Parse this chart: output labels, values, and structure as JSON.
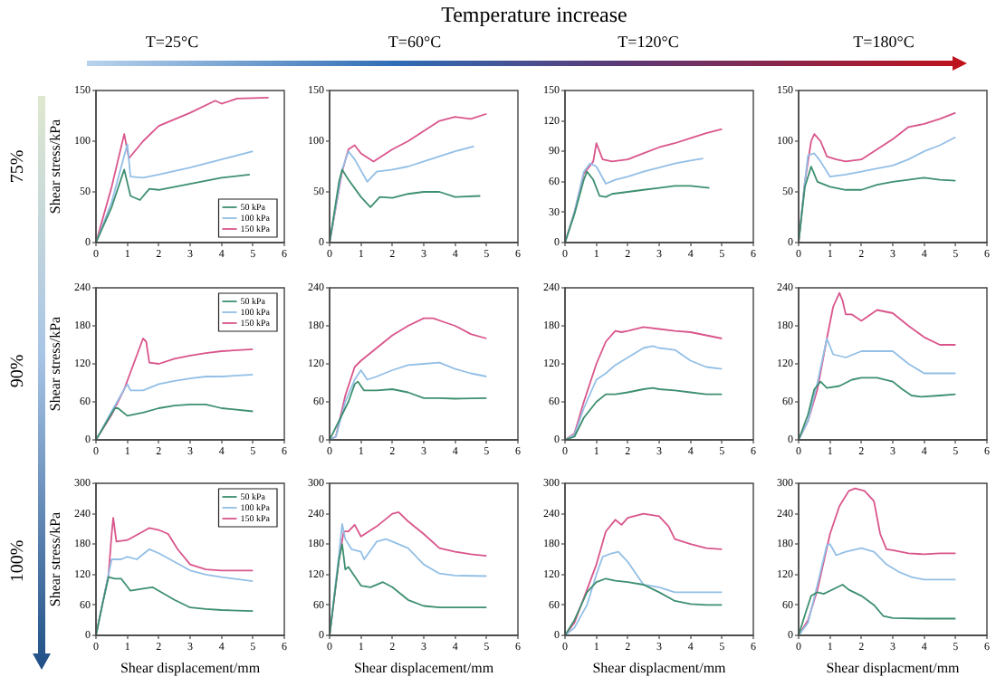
{
  "chart_data": [
    {
      "type": "other",
      "title": "Temperature increase",
      "annotations": [
        "T=25°C",
        "T=60°C",
        "T=120°C",
        "T=180°C",
        "75%",
        "90%",
        "100%"
      ]
    },
    {
      "type": "line",
      "ylabel": "Shear stress/kPa",
      "xlim": [
        0,
        6
      ],
      "xticks": [
        0,
        1,
        2,
        3,
        4,
        5,
        6
      ],
      "ylim": [
        0,
        150
      ],
      "yticks": [
        0,
        50,
        100,
        150
      ],
      "legend": "bottom right",
      "series": [
        {
          "name": "50 kPa",
          "color": "#3d8f6f",
          "x": [
            0,
            0.5,
            0.9,
            1.1,
            1.4,
            1.7,
            2,
            3,
            4,
            4.9
          ],
          "values": [
            0,
            35,
            72,
            46,
            42,
            53,
            52,
            58,
            64,
            67
          ]
        },
        {
          "name": "100 kPa",
          "color": "#93bfe6",
          "x": [
            0,
            0.5,
            1,
            1.1,
            1.5,
            2,
            3,
            4,
            5
          ],
          "values": [
            0,
            40,
            97,
            65,
            64,
            67,
            74,
            82,
            90
          ]
        },
        {
          "name": "150 kPa",
          "color": "#d9558c",
          "x": [
            0,
            0.5,
            0.9,
            1.05,
            1.5,
            2,
            3,
            3.8,
            4,
            4.5,
            5.5
          ],
          "values": [
            0,
            55,
            107,
            83,
            100,
            115,
            128,
            140,
            137,
            142,
            143
          ]
        }
      ]
    },
    {
      "type": "line",
      "xlim": [
        0,
        6
      ],
      "xticks": [
        0,
        1,
        2,
        3,
        4,
        5,
        6
      ],
      "ylim": [
        0,
        150
      ],
      "yticks": [
        0,
        50,
        100,
        150
      ],
      "series": [
        {
          "color": "#3d8f6f",
          "x": [
            0,
            0.3,
            0.4,
            0.6,
            1,
            1.3,
            1.6,
            2,
            2.5,
            3,
            3.5,
            4,
            4.8
          ],
          "values": [
            0,
            60,
            72,
            62,
            45,
            35,
            45,
            44,
            48,
            50,
            50,
            45,
            46
          ]
        },
        {
          "color": "#93bfe6",
          "x": [
            0,
            0.4,
            0.6,
            0.8,
            1.2,
            1.5,
            2,
            2.5,
            3,
            4,
            4.6
          ],
          "values": [
            0,
            72,
            90,
            82,
            60,
            70,
            72,
            75,
            80,
            90,
            95
          ]
        },
        {
          "color": "#d9558c",
          "x": [
            0,
            0.4,
            0.6,
            0.8,
            1,
            1.4,
            2,
            2.5,
            3,
            3.5,
            4,
            4.5,
            5
          ],
          "values": [
            0,
            70,
            92,
            96,
            88,
            80,
            92,
            100,
            110,
            120,
            124,
            122,
            127
          ]
        }
      ]
    },
    {
      "type": "line",
      "xlim": [
        0,
        6
      ],
      "xticks": [
        0,
        1,
        2,
        3,
        4,
        5,
        6
      ],
      "ylim": [
        0,
        150
      ],
      "yticks": [
        0,
        30,
        60,
        90,
        120,
        150
      ],
      "series": [
        {
          "color": "#3d8f6f",
          "x": [
            0,
            0.3,
            0.6,
            0.7,
            0.9,
            1.1,
            1.3,
            1.5,
            2,
            2.5,
            3,
            3.5,
            4,
            4.6
          ],
          "values": [
            0,
            28,
            62,
            70,
            62,
            46,
            45,
            48,
            50,
            52,
            54,
            56,
            56,
            54
          ]
        },
        {
          "color": "#93bfe6",
          "x": [
            0,
            0.3,
            0.6,
            0.8,
            1,
            1.3,
            1.6,
            2,
            2.5,
            3,
            3.5,
            4,
            4.4
          ],
          "values": [
            0,
            30,
            70,
            78,
            75,
            58,
            62,
            65,
            70,
            74,
            78,
            81,
            83
          ]
        },
        {
          "color": "#d9558c",
          "x": [
            0,
            0.3,
            0.6,
            0.9,
            1,
            1.2,
            1.5,
            2,
            2.5,
            3,
            3.5,
            4,
            4.5,
            5
          ],
          "values": [
            0,
            30,
            68,
            80,
            98,
            82,
            80,
            82,
            88,
            94,
            98,
            103,
            108,
            112
          ]
        }
      ]
    },
    {
      "type": "line",
      "xlim": [
        0,
        6
      ],
      "xticks": [
        0,
        1,
        2,
        3,
        4,
        5,
        6
      ],
      "ylim": [
        0,
        150
      ],
      "yticks": [
        0,
        50,
        100,
        150
      ],
      "series": [
        {
          "color": "#3d8f6f",
          "x": [
            0,
            0.2,
            0.4,
            0.6,
            1,
            1.5,
            2,
            2.5,
            3,
            3.5,
            4,
            4.5,
            5
          ],
          "values": [
            0,
            55,
            75,
            60,
            55,
            52,
            52,
            57,
            60,
            62,
            64,
            62,
            61
          ]
        },
        {
          "color": "#93bfe6",
          "x": [
            0,
            0.2,
            0.3,
            0.5,
            0.7,
            1,
            1.5,
            2,
            2.5,
            3,
            3.5,
            4,
            4.5,
            5
          ],
          "values": [
            0,
            60,
            86,
            88,
            80,
            65,
            67,
            70,
            73,
            76,
            82,
            90,
            96,
            104
          ]
        },
        {
          "color": "#d9558c",
          "x": [
            0,
            0.2,
            0.4,
            0.5,
            0.7,
            0.9,
            1.2,
            1.5,
            2,
            2.5,
            3,
            3.5,
            4,
            4.5,
            5
          ],
          "values": [
            0,
            60,
            100,
            107,
            100,
            85,
            82,
            80,
            82,
            92,
            102,
            114,
            117,
            122,
            128
          ]
        }
      ]
    },
    {
      "type": "line",
      "ylabel": "Shear stress/kPa",
      "xlim": [
        0,
        6
      ],
      "xticks": [
        0,
        1,
        2,
        3,
        4,
        5,
        6
      ],
      "ylim": [
        0,
        240
      ],
      "yticks": [
        0,
        60,
        120,
        180,
        240
      ],
      "legend": "top right",
      "series": [
        {
          "name": "50 kPa",
          "color": "#3d8f6f",
          "x": [
            0,
            0.3,
            0.6,
            0.7,
            1,
            1.5,
            2,
            2.5,
            3,
            3.5,
            4,
            5
          ],
          "values": [
            0,
            25,
            50,
            50,
            38,
            43,
            50,
            54,
            56,
            56,
            50,
            45
          ]
        },
        {
          "name": "100 kPa",
          "color": "#93bfe6",
          "x": [
            0,
            0.5,
            0.9,
            1,
            1.1,
            1.5,
            2,
            2.5,
            3,
            3.5,
            4,
            5
          ],
          "values": [
            0,
            45,
            80,
            88,
            78,
            78,
            88,
            93,
            97,
            100,
            100,
            103
          ]
        },
        {
          "name": "150 kPa",
          "color": "#d9558c",
          "x": [
            0,
            0.5,
            0.9,
            1.2,
            1.5,
            1.6,
            1.7,
            2,
            2.5,
            3,
            3.5,
            4,
            5
          ],
          "values": [
            0,
            40,
            80,
            120,
            160,
            155,
            122,
            120,
            128,
            133,
            137,
            140,
            143
          ]
        }
      ]
    },
    {
      "type": "line",
      "xlim": [
        0,
        6
      ],
      "xticks": [
        0,
        1,
        2,
        3,
        4,
        5,
        6
      ],
      "ylim": [
        0,
        240
      ],
      "yticks": [
        0,
        60,
        120,
        180,
        240
      ],
      "series": [
        {
          "color": "#3d8f6f",
          "x": [
            0,
            0.3,
            0.6,
            0.8,
            0.9,
            1.1,
            1.5,
            2,
            2.5,
            3,
            3.5,
            4,
            5
          ],
          "values": [
            0,
            30,
            60,
            88,
            92,
            78,
            78,
            80,
            75,
            66,
            66,
            65,
            66
          ]
        },
        {
          "color": "#93bfe6",
          "x": [
            0,
            0.2,
            0.5,
            0.8,
            1,
            1.2,
            1.5,
            2,
            2.5,
            3,
            3.5,
            4,
            4.5,
            5
          ],
          "values": [
            0,
            5,
            60,
            95,
            110,
            95,
            100,
            110,
            118,
            120,
            122,
            112,
            105,
            100
          ]
        },
        {
          "color": "#d9558c",
          "x": [
            0,
            0.2,
            0.5,
            0.8,
            1,
            1.5,
            2,
            2.5,
            3,
            3.3,
            3.7,
            4,
            4.5,
            5
          ],
          "values": [
            0,
            5,
            70,
            115,
            125,
            145,
            165,
            180,
            192,
            192,
            185,
            180,
            167,
            160
          ]
        }
      ]
    },
    {
      "type": "line",
      "xlim": [
        0,
        6
      ],
      "xticks": [
        0,
        1,
        2,
        3,
        4,
        5,
        6
      ],
      "ylim": [
        0,
        240
      ],
      "yticks": [
        0,
        60,
        120,
        180,
        240
      ],
      "series": [
        {
          "color": "#3d8f6f",
          "x": [
            0,
            0.3,
            0.6,
            1,
            1.3,
            1.6,
            2,
            2.5,
            2.8,
            3,
            3.5,
            4,
            4.5,
            5
          ],
          "values": [
            0,
            5,
            35,
            60,
            72,
            72,
            75,
            80,
            82,
            80,
            78,
            75,
            72,
            72
          ]
        },
        {
          "color": "#93bfe6",
          "x": [
            0,
            0.3,
            0.6,
            1,
            1.3,
            1.6,
            2,
            2.5,
            2.8,
            3,
            3.5,
            4,
            4.5,
            5
          ],
          "values": [
            0,
            8,
            50,
            95,
            105,
            118,
            130,
            145,
            148,
            145,
            142,
            125,
            115,
            112
          ]
        },
        {
          "color": "#d9558c",
          "x": [
            0,
            0.3,
            0.6,
            1,
            1.3,
            1.6,
            1.8,
            2,
            2.5,
            3,
            3.5,
            4,
            4.5,
            5
          ],
          "values": [
            0,
            10,
            60,
            120,
            155,
            172,
            170,
            172,
            178,
            175,
            172,
            170,
            165,
            160
          ]
        }
      ]
    },
    {
      "type": "line",
      "xlim": [
        0,
        6
      ],
      "xticks": [
        0,
        1,
        2,
        3,
        4,
        5,
        6
      ],
      "ylim": [
        0,
        240
      ],
      "yticks": [
        0,
        60,
        120,
        180,
        240
      ],
      "series": [
        {
          "color": "#3d8f6f",
          "x": [
            0,
            0.3,
            0.5,
            0.7,
            0.9,
            1.3,
            1.7,
            2,
            2.5,
            3,
            3.3,
            3.6,
            3.9,
            4.5,
            5
          ],
          "values": [
            0,
            40,
            80,
            92,
            82,
            85,
            95,
            98,
            98,
            92,
            80,
            70,
            68,
            70,
            72
          ]
        },
        {
          "color": "#93bfe6",
          "x": [
            0,
            0.3,
            0.6,
            0.9,
            1.1,
            1.5,
            2,
            2.5,
            3,
            3.5,
            4,
            4.5,
            5
          ],
          "values": [
            0,
            30,
            90,
            160,
            135,
            130,
            140,
            140,
            140,
            120,
            105,
            105,
            105
          ]
        },
        {
          "color": "#d9558c",
          "x": [
            0,
            0.3,
            0.6,
            0.9,
            1.1,
            1.3,
            1.4,
            1.5,
            1.7,
            2,
            2.5,
            3,
            3.5,
            4,
            4.5,
            5
          ],
          "values": [
            0,
            30,
            80,
            160,
            210,
            232,
            220,
            198,
            198,
            188,
            205,
            200,
            180,
            162,
            150,
            150
          ]
        }
      ]
    },
    {
      "type": "line",
      "ylabel": "Shear stress/kPa",
      "xlabel": "Shear displacement/mm",
      "xlim": [
        0,
        6
      ],
      "xticks": [
        0,
        1,
        2,
        3,
        4,
        5,
        6
      ],
      "ylim": [
        0,
        300
      ],
      "yticks": [
        0,
        60,
        120,
        180,
        240,
        300
      ],
      "legend": "top right",
      "series": [
        {
          "name": "50 kPa",
          "color": "#3d8f6f",
          "x": [
            0,
            0.2,
            0.4,
            0.6,
            0.8,
            1.1,
            1.5,
            1.8,
            2,
            2.5,
            3,
            3.5,
            4,
            5
          ],
          "values": [
            0,
            60,
            115,
            112,
            112,
            88,
            92,
            95,
            88,
            70,
            55,
            52,
            50,
            48
          ]
        },
        {
          "name": "100 kPa",
          "color": "#93bfe6",
          "x": [
            0,
            0.2,
            0.4,
            0.5,
            0.8,
            1,
            1.3,
            1.7,
            2,
            2.5,
            3,
            3.5,
            4,
            5
          ],
          "values": [
            0,
            60,
            120,
            150,
            150,
            155,
            150,
            170,
            162,
            145,
            128,
            120,
            115,
            107
          ]
        },
        {
          "name": "150 kPa",
          "color": "#d9558c",
          "x": [
            0,
            0.2,
            0.4,
            0.5,
            0.55,
            0.65,
            1,
            1.5,
            1.7,
            2,
            2.3,
            2.6,
            3,
            3.5,
            4,
            5
          ],
          "values": [
            0,
            60,
            120,
            200,
            232,
            185,
            188,
            205,
            212,
            208,
            200,
            170,
            140,
            130,
            128,
            128
          ]
        }
      ]
    },
    {
      "type": "line",
      "xlabel": "Shear displacement/mm",
      "xlim": [
        0,
        6
      ],
      "xticks": [
        0,
        1,
        2,
        3,
        4,
        5,
        6
      ],
      "ylim": [
        0,
        300
      ],
      "yticks": [
        0,
        60,
        120,
        180,
        240,
        300
      ],
      "series": [
        {
          "color": "#3d8f6f",
          "x": [
            0,
            0.3,
            0.4,
            0.5,
            0.6,
            1,
            1.3,
            1.7,
            2,
            2.5,
            3,
            3.5,
            4,
            5
          ],
          "values": [
            0,
            150,
            180,
            130,
            135,
            98,
            95,
            105,
            95,
            70,
            58,
            55,
            55,
            55
          ]
        },
        {
          "color": "#93bfe6",
          "x": [
            0,
            0.3,
            0.4,
            0.5,
            0.7,
            1,
            1.1,
            1.5,
            1.8,
            2,
            2.5,
            3,
            3.5,
            4,
            5
          ],
          "values": [
            0,
            160,
            220,
            190,
            170,
            165,
            150,
            185,
            190,
            185,
            172,
            140,
            122,
            118,
            117
          ]
        },
        {
          "color": "#d9558c",
          "x": [
            0,
            0.3,
            0.45,
            0.6,
            0.8,
            1,
            1.5,
            2,
            2.2,
            2.5,
            3,
            3.5,
            4,
            4.5,
            5
          ],
          "values": [
            0,
            150,
            205,
            205,
            218,
            195,
            215,
            240,
            243,
            225,
            200,
            172,
            165,
            160,
            157
          ]
        }
      ]
    },
    {
      "type": "line",
      "xlabel": "Shear displacment/mm",
      "xlim": [
        0,
        6
      ],
      "xticks": [
        0,
        1,
        2,
        3,
        4,
        5,
        6
      ],
      "ylim": [
        0,
        300
      ],
      "yticks": [
        0,
        60,
        120,
        180,
        240,
        300
      ],
      "series": [
        {
          "color": "#3d8f6f",
          "x": [
            0,
            0.3,
            0.7,
            1,
            1.3,
            1.6,
            2,
            2.5,
            3,
            3.5,
            4,
            4.5,
            5
          ],
          "values": [
            0,
            30,
            85,
            105,
            112,
            108,
            105,
            100,
            85,
            68,
            62,
            60,
            60
          ]
        },
        {
          "color": "#93bfe6",
          "x": [
            0,
            0.3,
            0.7,
            1,
            1.2,
            1.5,
            1.7,
            2,
            2.5,
            3,
            3.5,
            4,
            4.5,
            5
          ],
          "values": [
            0,
            15,
            60,
            120,
            155,
            162,
            165,
            145,
            100,
            95,
            85,
            85,
            85,
            85
          ]
        },
        {
          "color": "#d9558c",
          "x": [
            0,
            0.3,
            0.7,
            1,
            1.3,
            1.6,
            1.8,
            2,
            2.5,
            3,
            3.3,
            3.5,
            4,
            4.5,
            5
          ],
          "values": [
            0,
            25,
            90,
            140,
            205,
            228,
            218,
            232,
            240,
            235,
            215,
            190,
            180,
            172,
            170
          ]
        }
      ]
    },
    {
      "type": "line",
      "xlabel": "Shear displacment/mm",
      "xlim": [
        0,
        6
      ],
      "xticks": [
        0,
        1,
        2,
        3,
        4,
        5,
        6
      ],
      "ylim": [
        0,
        300
      ],
      "yticks": [
        0,
        60,
        120,
        180,
        240,
        300
      ],
      "series": [
        {
          "color": "#3d8f6f",
          "x": [
            0,
            0.2,
            0.4,
            0.6,
            0.8,
            1,
            1.4,
            1.6,
            2,
            2.4,
            2.7,
            3,
            4,
            5
          ],
          "values": [
            0,
            40,
            78,
            85,
            82,
            88,
            100,
            90,
            78,
            60,
            38,
            34,
            33,
            33
          ]
        },
        {
          "color": "#93bfe6",
          "x": [
            0,
            0.3,
            0.6,
            0.9,
            1,
            1.2,
            1.5,
            2,
            2.4,
            2.8,
            3.2,
            3.6,
            4,
            5
          ],
          "values": [
            0,
            25,
            100,
            178,
            180,
            158,
            165,
            172,
            165,
            140,
            125,
            115,
            110,
            110
          ]
        },
        {
          "color": "#d9558c",
          "x": [
            0,
            0.3,
            0.6,
            1,
            1.3,
            1.6,
            1.8,
            2.1,
            2.4,
            2.6,
            2.8,
            3,
            3.5,
            4,
            4.5,
            5
          ],
          "values": [
            0,
            30,
            90,
            200,
            255,
            285,
            290,
            285,
            265,
            200,
            170,
            168,
            162,
            160,
            162,
            162
          ]
        }
      ]
    }
  ]
}
